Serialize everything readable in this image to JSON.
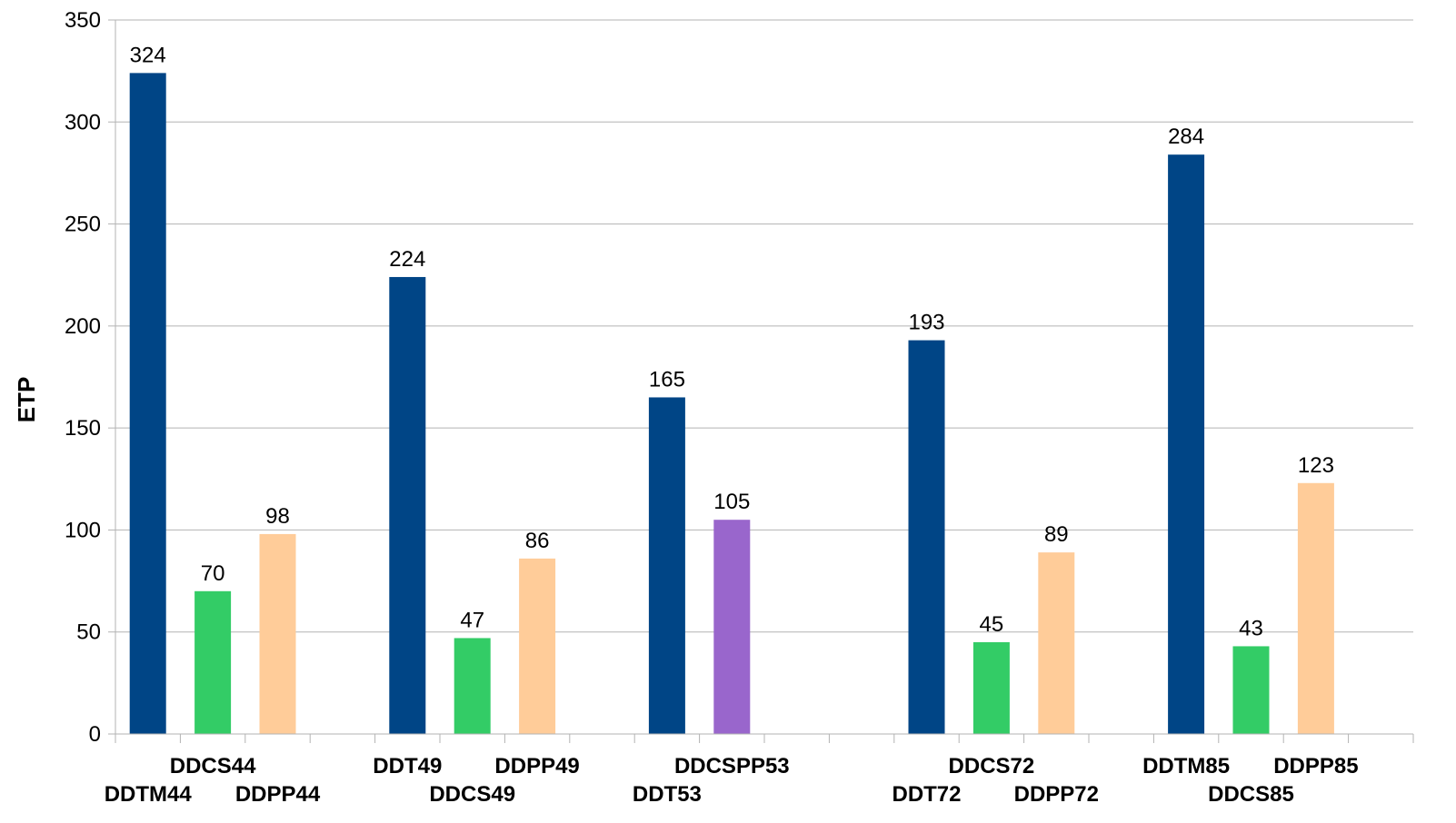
{
  "chart_data": {
    "type": "bar",
    "xlabel": "",
    "ylabel": "ETP",
    "ylim": [
      0,
      350
    ],
    "yticks": [
      0,
      50,
      100,
      150,
      200,
      250,
      300,
      350
    ],
    "grid": true,
    "legend": "none",
    "data_labels": true,
    "colors": {
      "DDT": "#004586",
      "DDCS": "#33CC66",
      "DDCSPP": "#9966CC",
      "DDPP": "#FFCC99",
      "gridline": "#B3B3B3",
      "axis": "#B3B3B3"
    },
    "groups": [
      {
        "bars": [
          {
            "label": "DDTM44",
            "value": 324,
            "kind": "DDT",
            "label_row": "lower"
          },
          {
            "label": "DDCS44",
            "value": 70,
            "kind": "DDCS",
            "label_row": "upper"
          },
          {
            "label": "DDPP44",
            "value": 98,
            "kind": "DDPP",
            "label_row": "lower"
          }
        ]
      },
      {
        "bars": [
          {
            "label": "DDT49",
            "value": 224,
            "kind": "DDT",
            "label_row": "upper"
          },
          {
            "label": "DDCS49",
            "value": 47,
            "kind": "DDCS",
            "label_row": "lower"
          },
          {
            "label": "DDPP49",
            "value": 86,
            "kind": "DDPP",
            "label_row": "upper"
          }
        ]
      },
      {
        "bars": [
          {
            "label": "DDT53",
            "value": 165,
            "kind": "DDT",
            "label_row": "lower"
          },
          {
            "label": "DDCSPP53",
            "value": 105,
            "kind": "DDCSPP",
            "label_row": "upper"
          }
        ]
      },
      {
        "bars": [
          {
            "label": "DDT72",
            "value": 193,
            "kind": "DDT",
            "label_row": "lower"
          },
          {
            "label": "DDCS72",
            "value": 45,
            "kind": "DDCS",
            "label_row": "upper"
          },
          {
            "label": "DDPP72",
            "value": 89,
            "kind": "DDPP",
            "label_row": "lower"
          }
        ]
      },
      {
        "bars": [
          {
            "label": "DDTM85",
            "value": 284,
            "kind": "DDT",
            "label_row": "upper"
          },
          {
            "label": "DDCS85",
            "value": 43,
            "kind": "DDCS",
            "label_row": "lower"
          },
          {
            "label": "DDPP85",
            "value": 123,
            "kind": "DDPP",
            "label_row": "upper"
          }
        ]
      }
    ]
  }
}
